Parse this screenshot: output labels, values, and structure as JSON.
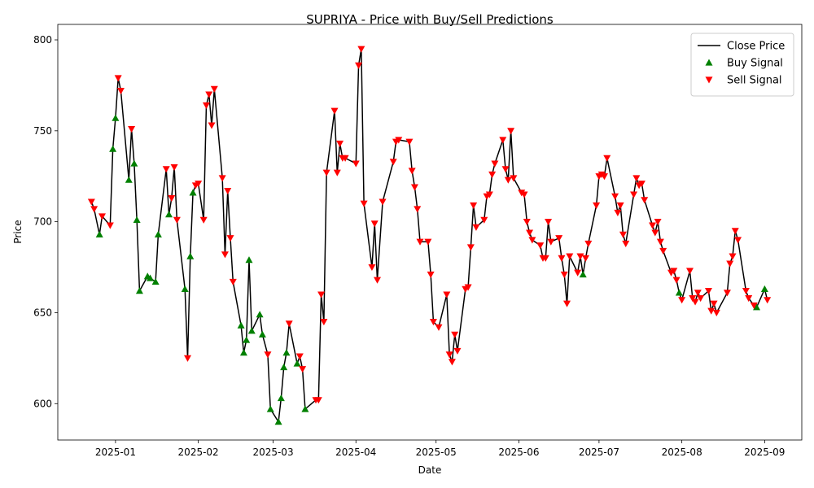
{
  "chart_data": {
    "type": "line",
    "title": "SUPRIYA - Price with Buy/Sell Predictions",
    "xlabel": "Date",
    "ylabel": "Price",
    "xlim": [
      -21.6,
      256.9
    ],
    "ylim": [
      580,
      808.5
    ],
    "xticks": [
      {
        "value": 0,
        "label": "2025-01"
      },
      {
        "value": 31,
        "label": "2025-02"
      },
      {
        "value": 59,
        "label": "2025-03"
      },
      {
        "value": 90,
        "label": "2025-04"
      },
      {
        "value": 120,
        "label": "2025-05"
      },
      {
        "value": 151,
        "label": "2025-06"
      },
      {
        "value": 181,
        "label": "2025-07"
      },
      {
        "value": 212,
        "label": "2025-08"
      },
      {
        "value": 243,
        "label": "2025-09"
      }
    ],
    "yticks": [
      600,
      650,
      700,
      750,
      800
    ],
    "legend": "upper right",
    "series": [
      {
        "name": "Close Price",
        "type": "line",
        "color": "#000000",
        "x": [
          -9,
          -8,
          -6,
          -5,
          -2,
          -1,
          0,
          1,
          2,
          5,
          6,
          7,
          8,
          9,
          12,
          13,
          15,
          16,
          19,
          20,
          21,
          22,
          23,
          26,
          27,
          28,
          29,
          30,
          31,
          33,
          34,
          35,
          36,
          37,
          40,
          41,
          42,
          43,
          44,
          47,
          48,
          49,
          50,
          51,
          54,
          55,
          57,
          58,
          61,
          62,
          63,
          64,
          65,
          68,
          69,
          70,
          71,
          75,
          76,
          77,
          78,
          79,
          82,
          83,
          84,
          85,
          86,
          90,
          91,
          92,
          93,
          96,
          97,
          98,
          100,
          104,
          105,
          106,
          110,
          111,
          112,
          113,
          114,
          117,
          118,
          119,
          121,
          124,
          125,
          126,
          127,
          128,
          131,
          132,
          133,
          134,
          135,
          138,
          139,
          140,
          141,
          142,
          145,
          146,
          147,
          148,
          149,
          152,
          153,
          154,
          155,
          156,
          159,
          160,
          161,
          162,
          163,
          166,
          167,
          168,
          169,
          170,
          173,
          174,
          175,
          176,
          177,
          180,
          181,
          182,
          183,
          184,
          187,
          188,
          189,
          190,
          191,
          194,
          195,
          196,
          197,
          198,
          201,
          202,
          203,
          204,
          205,
          208,
          209,
          210,
          211,
          212,
          215,
          216,
          217,
          218,
          219,
          222,
          223,
          224,
          225,
          229,
          230,
          231,
          232,
          233,
          236,
          237,
          239,
          240,
          243,
          244
        ],
        "values": [
          711,
          707,
          693,
          703,
          698,
          740,
          757,
          779,
          772,
          723,
          751,
          732,
          701,
          662,
          670,
          669,
          667,
          693,
          729,
          704,
          713,
          730,
          701,
          663,
          625,
          681,
          716,
          720,
          721,
          701,
          764,
          770,
          753,
          773,
          724,
          682,
          717,
          691,
          667,
          643,
          628,
          635,
          679,
          640,
          649,
          638,
          627,
          597,
          590,
          603,
          620,
          628,
          644,
          622,
          626,
          619,
          597,
          602,
          602,
          660,
          645,
          727,
          761,
          727,
          743,
          735,
          735,
          732,
          786,
          795,
          710,
          675,
          699,
          668,
          711,
          733,
          744,
          745,
          744,
          728,
          719,
          707,
          689,
          689,
          671,
          645,
          642,
          660,
          627,
          623,
          638,
          629,
          663,
          664,
          686,
          709,
          697,
          701,
          714,
          715,
          726,
          732,
          745,
          729,
          723,
          750,
          724,
          716,
          715,
          700,
          694,
          690,
          687,
          680,
          680,
          700,
          689,
          691,
          680,
          671,
          655,
          681,
          672,
          681,
          671,
          680,
          688,
          709,
          725,
          726,
          725,
          735,
          714,
          705,
          709,
          693,
          688,
          715,
          724,
          720,
          721,
          712,
          698,
          694,
          700,
          689,
          684,
          672,
          673,
          668,
          661,
          657,
          673,
          658,
          656,
          661,
          658,
          662,
          651,
          655,
          650,
          661,
          677,
          681,
          695,
          690,
          662,
          658,
          654,
          653,
          663,
          657
        ]
      },
      {
        "name": "Buy Signal",
        "type": "scatter",
        "marker": "^",
        "color": "#008000",
        "x": [
          -6,
          -1,
          0,
          5,
          7,
          8,
          9,
          12,
          13,
          15,
          16,
          20,
          26,
          28,
          29,
          47,
          48,
          49,
          50,
          51,
          54,
          55,
          58,
          61,
          62,
          63,
          64,
          68,
          71,
          175,
          211,
          240,
          243
        ],
        "values": [
          693,
          740,
          757,
          723,
          732,
          701,
          662,
          670,
          669,
          667,
          693,
          704,
          663,
          681,
          716,
          643,
          628,
          635,
          679,
          640,
          649,
          638,
          597,
          590,
          603,
          620,
          628,
          622,
          597,
          671,
          661,
          653,
          663
        ]
      },
      {
        "name": "Sell Signal",
        "type": "scatter",
        "marker": "v",
        "color": "#ff0000",
        "x": [
          -9,
          -8,
          -5,
          -2,
          1,
          2,
          6,
          19,
          21,
          22,
          23,
          27,
          30,
          31,
          33,
          34,
          35,
          36,
          37,
          40,
          41,
          42,
          43,
          44,
          57,
          65,
          69,
          70,
          75,
          76,
          77,
          78,
          79,
          82,
          83,
          84,
          85,
          86,
          90,
          91,
          92,
          93,
          96,
          97,
          98,
          100,
          104,
          105,
          106,
          110,
          111,
          112,
          113,
          114,
          117,
          118,
          119,
          121,
          124,
          125,
          126,
          127,
          128,
          131,
          132,
          133,
          134,
          135,
          138,
          139,
          140,
          141,
          142,
          145,
          146,
          147,
          148,
          149,
          152,
          153,
          154,
          155,
          156,
          159,
          160,
          161,
          162,
          163,
          166,
          167,
          168,
          169,
          170,
          173,
          174,
          176,
          177,
          180,
          181,
          182,
          183,
          184,
          187,
          188,
          189,
          190,
          191,
          194,
          195,
          196,
          197,
          198,
          201,
          202,
          203,
          204,
          205,
          208,
          209,
          210,
          212,
          215,
          216,
          217,
          218,
          219,
          222,
          223,
          224,
          225,
          229,
          230,
          231,
          232,
          233,
          236,
          237,
          239,
          244
        ],
        "values": [
          711,
          707,
          703,
          698,
          779,
          772,
          751,
          729,
          713,
          730,
          701,
          625,
          720,
          721,
          701,
          764,
          770,
          753,
          773,
          724,
          682,
          717,
          691,
          667,
          627,
          644,
          626,
          619,
          602,
          602,
          660,
          645,
          727,
          761,
          727,
          743,
          735,
          735,
          732,
          786,
          795,
          710,
          675,
          699,
          668,
          711,
          733,
          744,
          745,
          744,
          728,
          719,
          707,
          689,
          689,
          671,
          645,
          642,
          660,
          627,
          623,
          638,
          629,
          663,
          664,
          686,
          709,
          697,
          701,
          714,
          715,
          726,
          732,
          745,
          729,
          723,
          750,
          724,
          716,
          715,
          700,
          694,
          690,
          687,
          680,
          680,
          700,
          689,
          691,
          680,
          671,
          655,
          681,
          672,
          681,
          680,
          688,
          709,
          725,
          726,
          725,
          735,
          714,
          705,
          709,
          693,
          688,
          715,
          724,
          720,
          721,
          712,
          698,
          694,
          700,
          689,
          684,
          672,
          673,
          668,
          657,
          673,
          658,
          656,
          661,
          658,
          662,
          651,
          655,
          650,
          661,
          677,
          681,
          695,
          690,
          662,
          658,
          654,
          657
        ]
      }
    ]
  }
}
